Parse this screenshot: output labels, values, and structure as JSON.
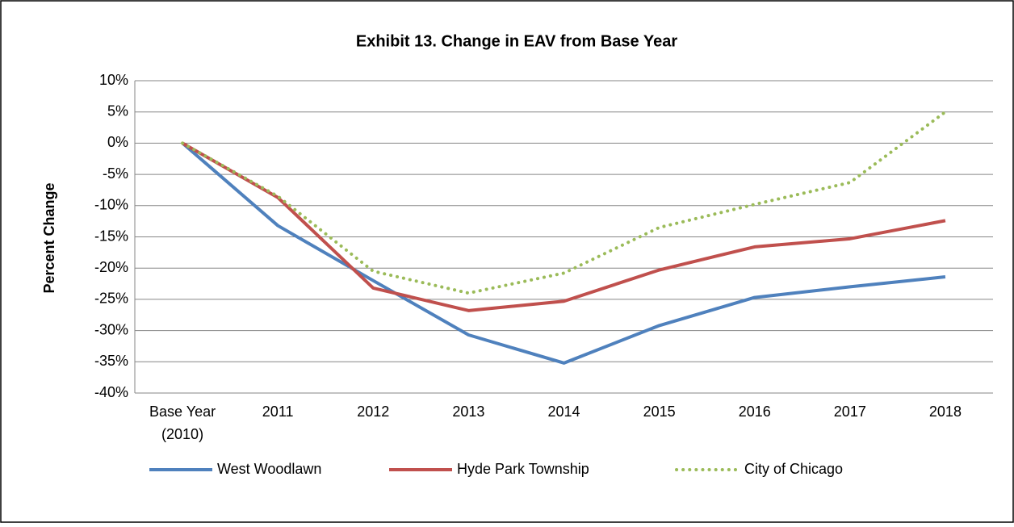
{
  "chart_data": {
    "type": "line",
    "title": "Exhibit 13. Change in EAV from Base Year",
    "y_label": "Percent Change",
    "categories": [
      "Base Year (2010)",
      "2011",
      "2012",
      "2013",
      "2014",
      "2015",
      "2016",
      "2017",
      "2018"
    ],
    "series": [
      {
        "name": "West Woodlawn",
        "color": "#4f81bd",
        "style": "solid",
        "values": [
          0,
          -13.2,
          -22,
          -30.7,
          -35.2,
          -29.2,
          -24.7,
          -23,
          -21.4
        ]
      },
      {
        "name": "Hyde Park Township",
        "color": "#c0504d",
        "style": "solid",
        "values": [
          0,
          -8.7,
          -23.2,
          -26.8,
          -25.3,
          -20.3,
          -16.6,
          -15.3,
          -12.4
        ]
      },
      {
        "name": "City of Chicago",
        "color": "#9bbb59",
        "style": "dotted",
        "values": [
          0,
          -8.5,
          -20.5,
          -24,
          -20.8,
          -13.5,
          -9.8,
          -6.3,
          5
        ]
      }
    ],
    "ylim": [
      -40,
      10
    ],
    "yticks": [
      {
        "value": -40,
        "label": "-40%"
      },
      {
        "value": -35,
        "label": "-35%"
      },
      {
        "value": -30,
        "label": "-30%"
      },
      {
        "value": -25,
        "label": "-25%"
      },
      {
        "value": -20,
        "label": "-20%"
      },
      {
        "value": -15,
        "label": "-15%"
      },
      {
        "value": -10,
        "label": "-10%"
      },
      {
        "value": -5,
        "label": "-5%"
      },
      {
        "value": 0,
        "label": "0%"
      },
      {
        "value": 5,
        "label": "5%"
      },
      {
        "value": 10,
        "label": "10%"
      }
    ],
    "grid": true,
    "legend": "bottom"
  }
}
